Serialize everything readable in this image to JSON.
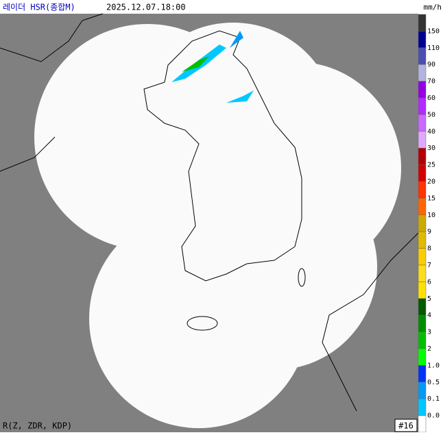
{
  "header": {
    "title": "레이더 HSR(종합M)",
    "time": "2025.12.07.18:00",
    "unit": "mm/h"
  },
  "legend": {
    "labels": [
      "150",
      "110",
      "90",
      "70",
      "60",
      "50",
      "40",
      "30",
      "25",
      "20",
      "15",
      "10",
      "9",
      "8",
      "7",
      "6",
      "5",
      "4",
      "3",
      "2",
      "1.0",
      "0.5",
      "0.1",
      "0.0"
    ],
    "colors": [
      "#333333",
      "#000390",
      "#4c4eb1",
      "#b3b4de",
      "#9300e4",
      "#b329ff",
      "#c969ff",
      "#e0a9ff",
      "#b40000",
      "#d20000",
      "#ff3200",
      "#ff6600",
      "#ccaa00",
      "#e0b900",
      "#f9cd00",
      "#ffdc1f",
      "#ffe100",
      "#005a00",
      "#008c00",
      "#00be00",
      "#00ff00",
      "#0033f5",
      "#009bf5",
      "#00c8ff",
      "#ffffff"
    ]
  },
  "footer": {
    "method": "R(Z, ZDR, KDP)",
    "station_count": "#16"
  }
}
